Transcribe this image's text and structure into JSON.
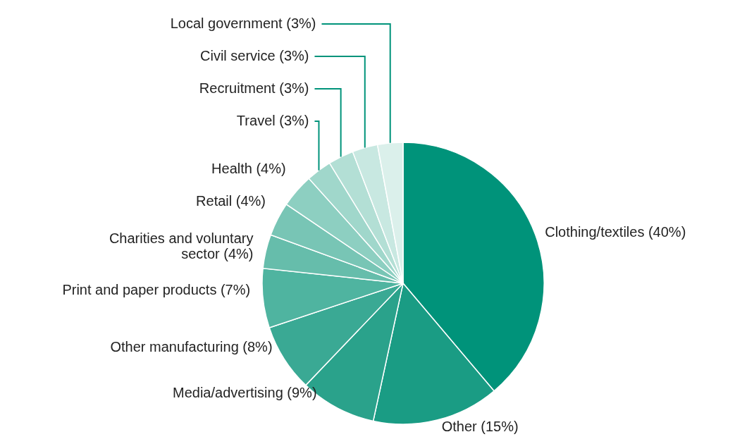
{
  "chart_data": {
    "type": "pie",
    "categories": [
      "Clothing/textiles (40%)",
      "Other (15%)",
      "Media/advertising (9%)",
      "Other manufacturing (8%)",
      "Print and paper products (7%)",
      "Charities and voluntary sector (4%)",
      "Retail (4%)",
      "Health (4%)",
      "Travel (3%)",
      "Recruitment (3%)",
      "Civil service (3%)",
      "Local government (3%)"
    ],
    "values": [
      40,
      15,
      9,
      8,
      7,
      4,
      4,
      4,
      3,
      3,
      3,
      3
    ],
    "colors": [
      "#00937a",
      "#1a9c84",
      "#2aa28b",
      "#3aa994",
      "#4fb4a0",
      "#66bdab",
      "#78c5b5",
      "#8dcfc1",
      "#a0d7cb",
      "#b3dfd5",
      "#c8e8e1",
      "#dbf0eb"
    ]
  }
}
